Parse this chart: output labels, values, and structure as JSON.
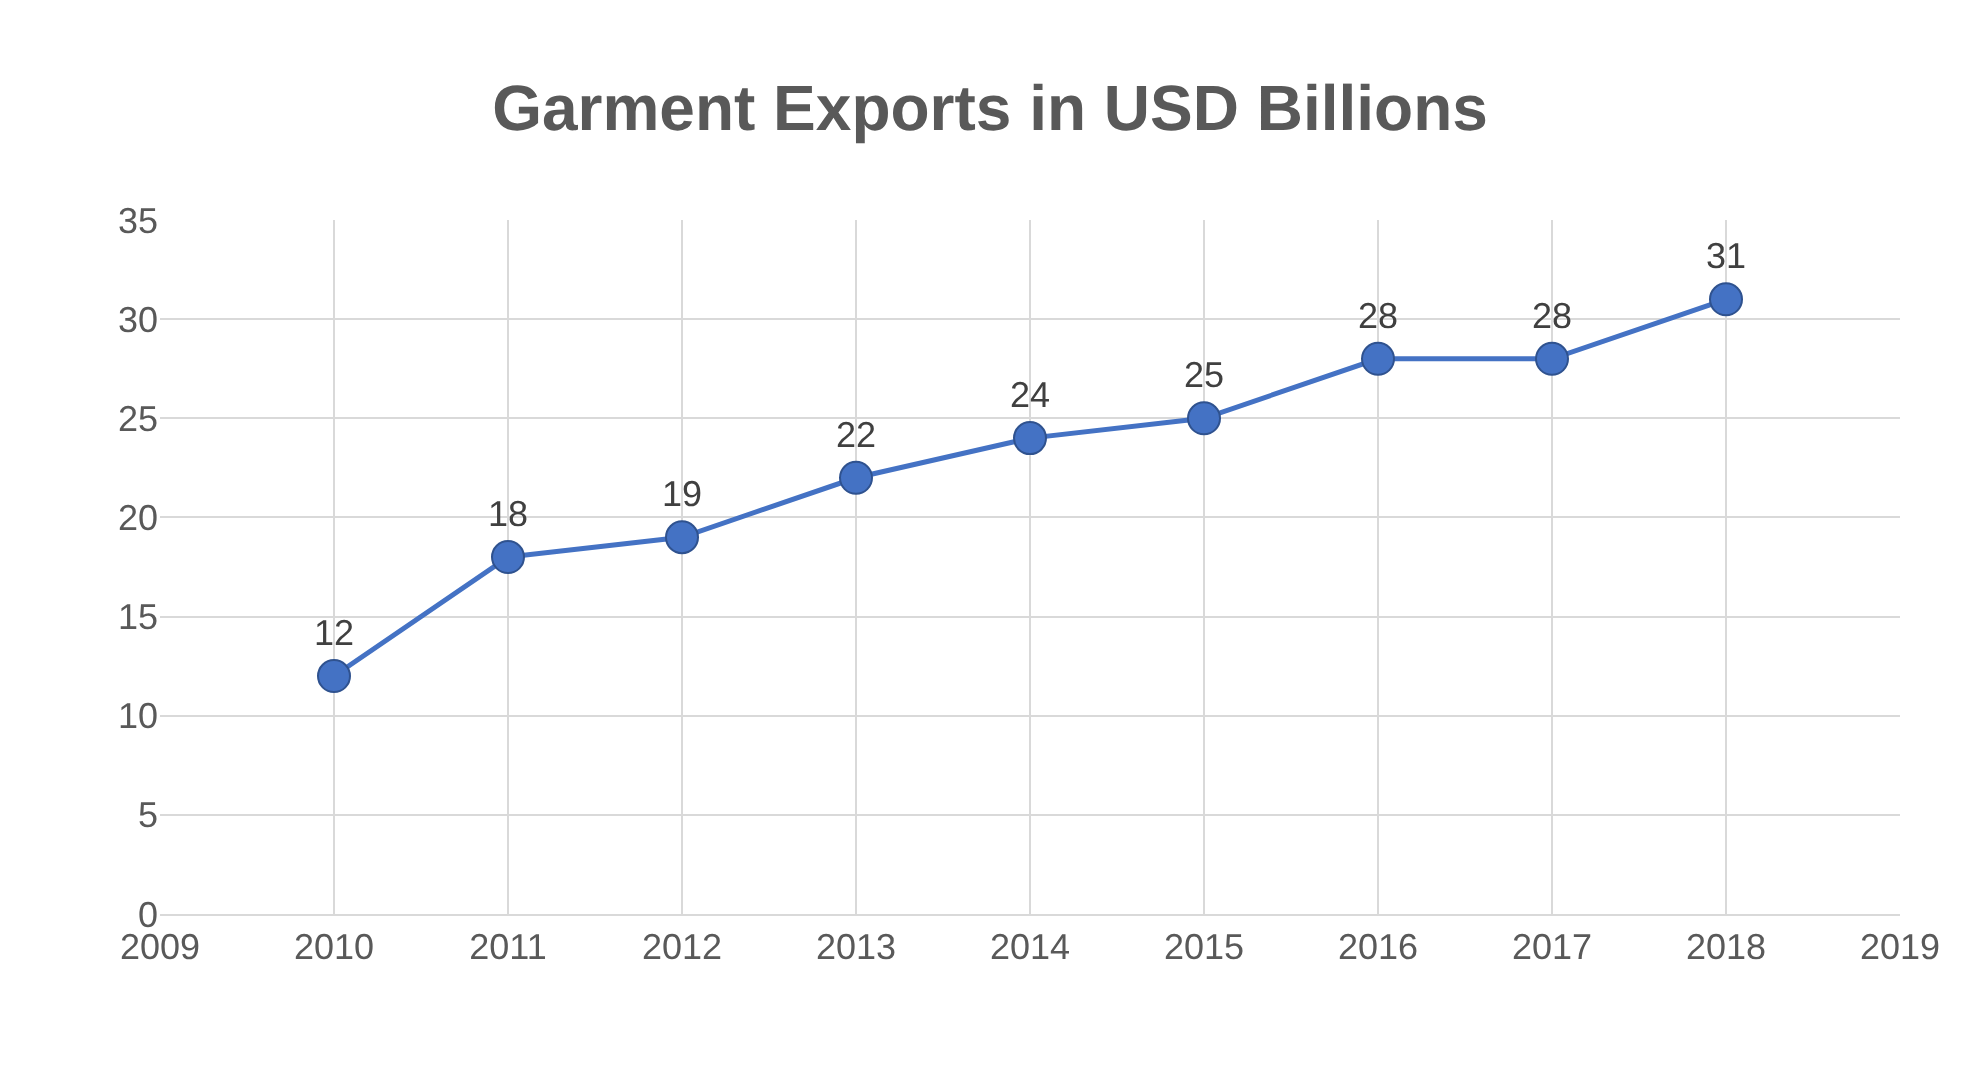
{
  "chart_data": {
    "type": "line",
    "title": "Garment Exports in USD Billions",
    "x": [
      2010,
      2011,
      2012,
      2013,
      2014,
      2015,
      2016,
      2017,
      2018
    ],
    "series": [
      {
        "color": "#4472c4",
        "values": [
          12,
          18,
          19,
          22,
          24,
          25,
          28,
          28,
          31
        ]
      }
    ],
    "xlim": [
      2009,
      2019
    ],
    "xticks": [
      2009,
      2010,
      2011,
      2012,
      2013,
      2014,
      2015,
      2016,
      2017,
      2018,
      2019
    ],
    "ylim": [
      0,
      35
    ],
    "yticks": [
      0,
      5,
      10,
      15,
      20,
      25,
      30,
      35
    ],
    "grid": true,
    "marker": "circle",
    "line_style": "solid",
    "data_labels": true,
    "legend": false
  }
}
